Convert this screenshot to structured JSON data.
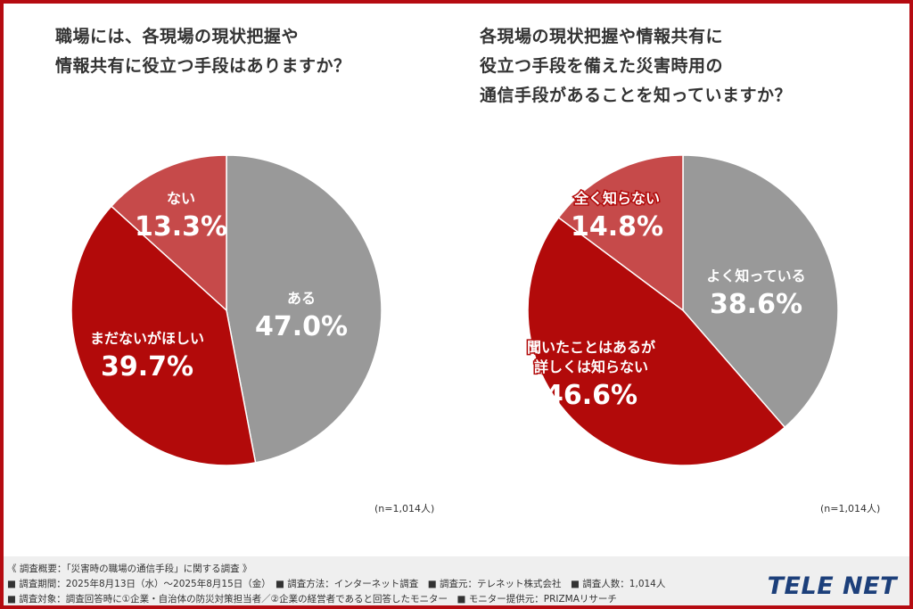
{
  "chart_data": [
    {
      "type": "pie",
      "title": "職場には、各現場の現状把握や\n情報共有に役立つ手段はありますか？",
      "n_label": "(n=1,014人)",
      "slices": [
        {
          "label": "ある",
          "value": 47.0,
          "value_text": "47.0%",
          "color": "#999999"
        },
        {
          "label": "まだないがほしい",
          "value": 39.7,
          "value_text": "39.7%",
          "color": "#b20a0a"
        },
        {
          "label": "ない",
          "value": 13.3,
          "value_text": "13.3%",
          "color": "#c64a4a"
        }
      ]
    },
    {
      "type": "pie",
      "title": "各現場の現状把握や情報共有に\n役立つ手段を備えた災害時用の\n通信手段があることを知っていますか？",
      "n_label": "(n=1,014人)",
      "slices": [
        {
          "label": "よく知っている",
          "value": 38.6,
          "value_text": "38.6%",
          "color": "#999999"
        },
        {
          "label": "聞いたことはあるが\n詳しくは知らない",
          "value": 46.6,
          "value_text": "46.6%",
          "color": "#b20a0a"
        },
        {
          "label": "全く知らない",
          "value": 14.8,
          "value_text": "14.8%",
          "color": "#c64a4a"
        }
      ]
    }
  ],
  "footer": {
    "line1": "《 調査概要：「災害時の職場の通信手段」に関する調査 》",
    "line2": "■ 調査期間：2025年8月13日（水）～2025年8月15日（金）　■ 調査方法：インターネット調査　■ 調査元：テレネット株式会社　■ 調査人数：1,014人",
    "line3": "■ 調査対象：調査回答時に①企業・自治体の防災対策担当者／②企業の経営者であると回答したモニター　■ モニター提供元：PRIZMAリサーチ"
  },
  "logo": {
    "text": "TELE NET"
  }
}
